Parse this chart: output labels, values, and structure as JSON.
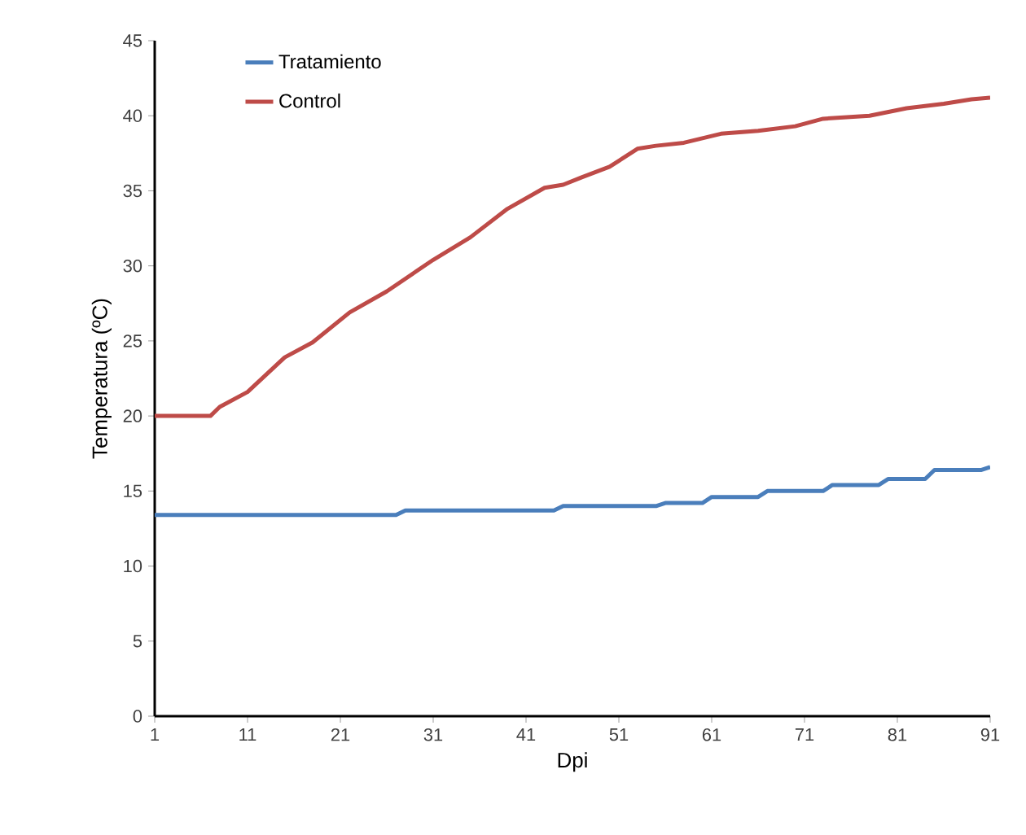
{
  "chart_data": {
    "type": "line",
    "xlabel": "Dpi",
    "ylabel": "Temperatura (ºC)",
    "xlim": [
      1,
      91
    ],
    "ylim": [
      0,
      45
    ],
    "xticks": [
      1,
      11,
      21,
      31,
      41,
      51,
      61,
      71,
      81,
      91
    ],
    "yticks": [
      0,
      5,
      10,
      15,
      20,
      25,
      30,
      35,
      40,
      45
    ],
    "legend": "top left",
    "grid": false,
    "series": [
      {
        "name": "Tratamiento",
        "color": "#4a7ebb",
        "x": [
          1,
          27,
          28,
          44,
          45,
          55,
          56,
          60,
          61,
          66,
          67,
          73,
          74,
          79,
          80,
          84,
          85,
          90,
          91
        ],
        "values": [
          13.4,
          13.4,
          13.7,
          13.7,
          14.0,
          14.0,
          14.2,
          14.2,
          14.6,
          14.6,
          15.0,
          15.0,
          15.4,
          15.4,
          15.8,
          15.8,
          16.4,
          16.4,
          16.6
        ]
      },
      {
        "name": "Control",
        "color": "#be4b48",
        "x": [
          1,
          7,
          8,
          11,
          15,
          18,
          22,
          26,
          31,
          35,
          39,
          43,
          45,
          47,
          50,
          51,
          53,
          55,
          58,
          62,
          66,
          70,
          73,
          78,
          82,
          86,
          89,
          91
        ],
        "values": [
          20,
          20,
          20.6,
          21.6,
          23.9,
          24.9,
          26.9,
          28.3,
          30.4,
          31.9,
          33.8,
          35.2,
          35.4,
          35.9,
          36.6,
          37.0,
          37.8,
          38.0,
          38.2,
          38.8,
          39.0,
          39.3,
          39.8,
          40.0,
          40.5,
          40.8,
          41.1,
          41.2
        ]
      }
    ]
  }
}
